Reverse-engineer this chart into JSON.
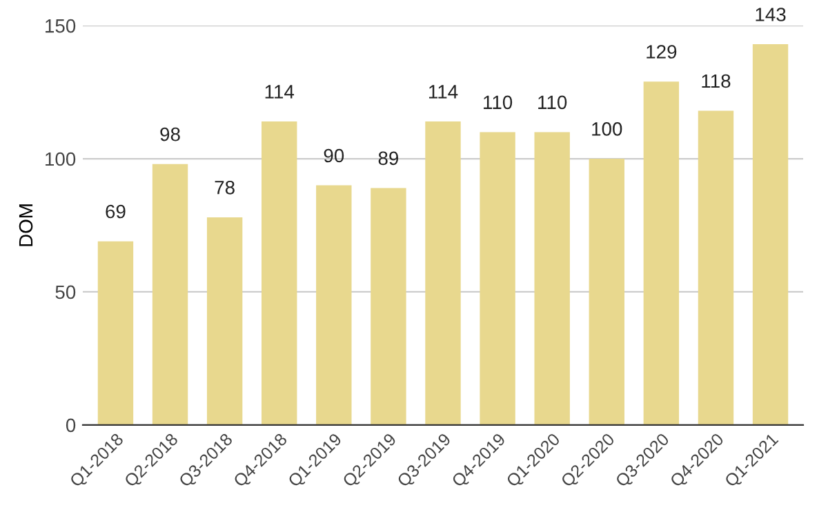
{
  "chart_data": {
    "type": "bar",
    "ylabel": "DOM",
    "categories": [
      "Q1-2018",
      "Q2-2018",
      "Q3-2018",
      "Q4-2018",
      "Q1-2019",
      "Q2-2019",
      "Q3-2019",
      "Q4-2019",
      "Q1-2020",
      "Q2-2020",
      "Q3-2020",
      "Q4-2020",
      "Q1-2021"
    ],
    "values": [
      69,
      98,
      78,
      114,
      90,
      89,
      114,
      110,
      110,
      100,
      129,
      118,
      143
    ],
    "color": "#e8d88e",
    "ylim": [
      0,
      150
    ],
    "yticks": [
      0,
      50,
      100,
      150
    ],
    "grid": "y",
    "data_labels": true
  }
}
